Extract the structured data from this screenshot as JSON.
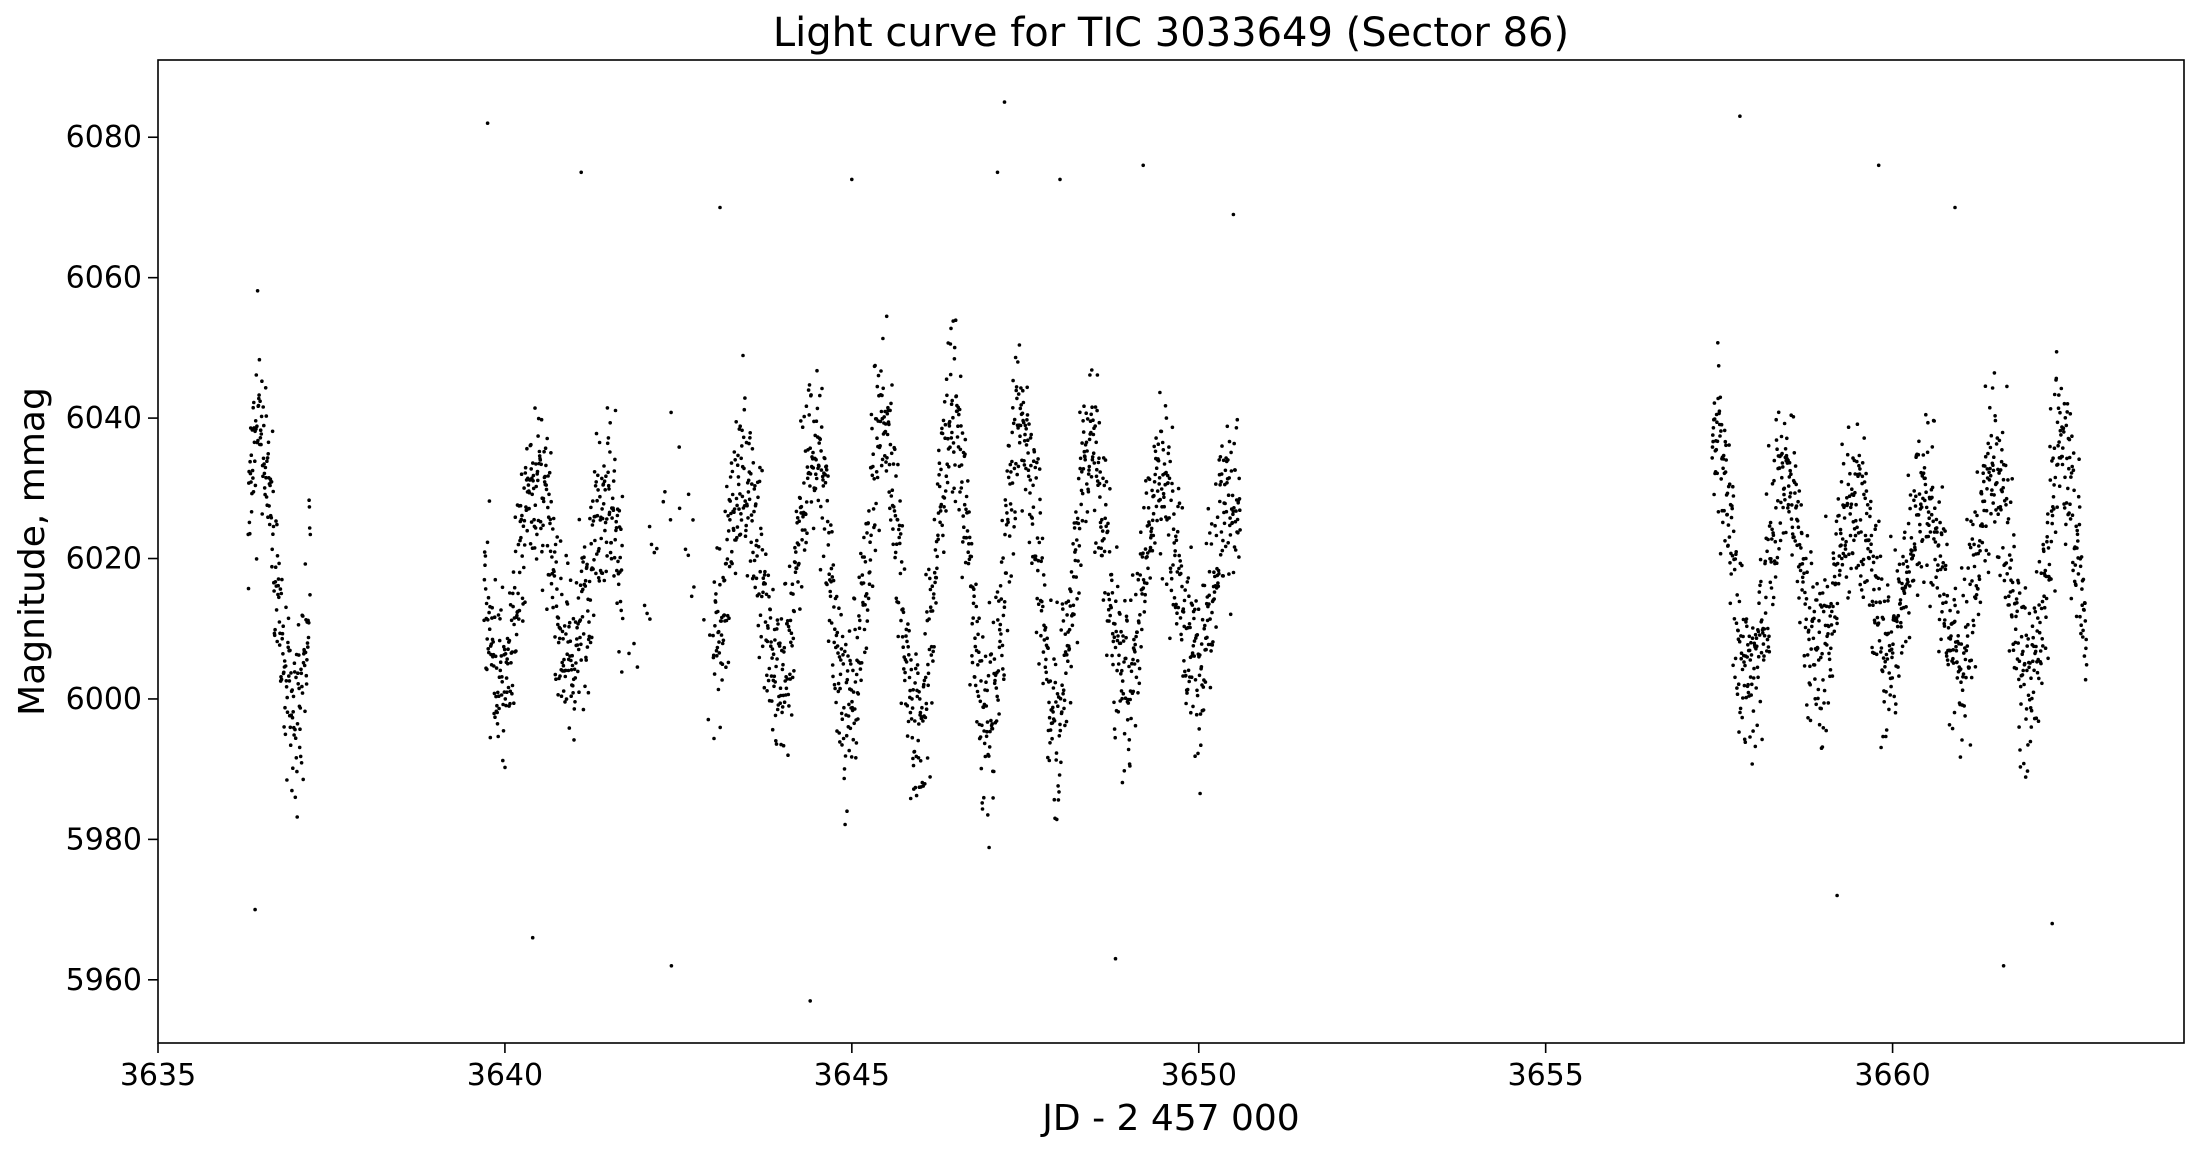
{
  "chart_data": {
    "type": "scatter",
    "title": "Light curve for TIC 3033649 (Sector 86)",
    "xlabel": "JD - 2 457 000",
    "ylabel": "Magnitude, mmag",
    "xlim": [
      3635,
      3664.2
    ],
    "ylim": [
      5951,
      6091
    ],
    "xticks": [
      3635,
      3640,
      3645,
      3650,
      3655,
      3660
    ],
    "yticks": [
      5960,
      5980,
      6000,
      6020,
      6040,
      6060,
      6080
    ],
    "grid": false,
    "legend": "none",
    "marker_color": "#000000",
    "data_segments": [
      {
        "x_start": 3636.3,
        "x_end": 3637.2
      },
      {
        "x_start": 3639.7,
        "x_end": 3643.0
      },
      {
        "x_start": 3643.0,
        "x_end": 3650.6
      },
      {
        "x_start": 3657.4,
        "x_end": 3662.8
      }
    ],
    "oscillation": {
      "mean": 6018,
      "amplitude": 20,
      "period_days": 1.0,
      "noise": 9
    },
    "outlier_points": [
      {
        "x": 3639.75,
        "y": 6082
      },
      {
        "x": 3647.2,
        "y": 6085
      },
      {
        "x": 3657.8,
        "y": 6083
      },
      {
        "x": 3644.4,
        "y": 5957
      },
      {
        "x": 3642.4,
        "y": 5962
      },
      {
        "x": 3661.6,
        "y": 5962
      },
      {
        "x": 3636.4,
        "y": 5970
      },
      {
        "x": 3640.4,
        "y": 5966
      },
      {
        "x": 3648.8,
        "y": 5963
      },
      {
        "x": 3649.2,
        "y": 6076
      },
      {
        "x": 3659.8,
        "y": 6076
      },
      {
        "x": 3645.0,
        "y": 6074
      },
      {
        "x": 3641.1,
        "y": 6075
      },
      {
        "x": 3662.3,
        "y": 5968
      },
      {
        "x": 3659.2,
        "y": 5972
      },
      {
        "x": 3650.5,
        "y": 6069
      },
      {
        "x": 3643.1,
        "y": 6070
      },
      {
        "x": 3647.1,
        "y": 6075
      },
      {
        "x": 3648.0,
        "y": 6074
      },
      {
        "x": 3660.9,
        "y": 6070
      }
    ]
  }
}
